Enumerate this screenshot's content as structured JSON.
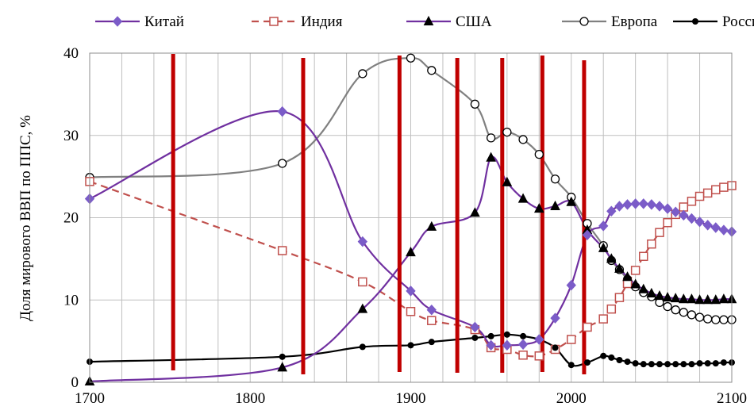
{
  "chart_data": {
    "type": "line",
    "title": "",
    "xlabel": "",
    "ylabel": "Доля мирового ВВП по ППС, %",
    "xlim": [
      1700,
      2100
    ],
    "ylim": [
      0,
      40
    ],
    "x_ticks": [
      "1700",
      "1800",
      "1900",
      "2000",
      "2100"
    ],
    "y_ticks": [
      "0",
      "10",
      "20",
      "30",
      "40"
    ],
    "grid": "vertical and horizontal",
    "legend_position": "top",
    "series": [
      {
        "name": "Китай",
        "color": "#7030a0",
        "dashed": false,
        "marker": "diamond-filled",
        "points": [
          [
            1700,
            22.3
          ],
          [
            1820,
            32.9
          ],
          [
            1870,
            17.1
          ],
          [
            1900,
            11.1
          ],
          [
            1913,
            8.8
          ],
          [
            1940,
            6.7
          ],
          [
            1950,
            4.5
          ],
          [
            1960,
            4.5
          ],
          [
            1970,
            4.6
          ],
          [
            1980,
            5.2
          ],
          [
            1990,
            7.8
          ],
          [
            2000,
            11.8
          ],
          [
            2010,
            17.9
          ],
          [
            2020,
            19.0
          ],
          [
            2025,
            20.8
          ],
          [
            2030,
            21.4
          ],
          [
            2035,
            21.6
          ],
          [
            2040,
            21.7
          ],
          [
            2045,
            21.7
          ],
          [
            2050,
            21.6
          ],
          [
            2055,
            21.4
          ],
          [
            2060,
            21.1
          ],
          [
            2065,
            20.7
          ],
          [
            2070,
            20.3
          ],
          [
            2075,
            19.9
          ],
          [
            2080,
            19.5
          ],
          [
            2085,
            19.1
          ],
          [
            2090,
            18.8
          ],
          [
            2095,
            18.5
          ],
          [
            2100,
            18.3
          ]
        ]
      },
      {
        "name": "Индия",
        "color": "#c0504d",
        "dashed": true,
        "marker": "square-open",
        "points": [
          [
            1700,
            24.4
          ],
          [
            1820,
            16.0
          ],
          [
            1870,
            12.2
          ],
          [
            1900,
            8.6
          ],
          [
            1913,
            7.5
          ],
          [
            1940,
            6.4
          ],
          [
            1950,
            4.2
          ],
          [
            1960,
            4.0
          ],
          [
            1970,
            3.3
          ],
          [
            1980,
            3.2
          ],
          [
            1990,
            4.0
          ],
          [
            2000,
            5.2
          ],
          [
            2010,
            6.7
          ],
          [
            2020,
            7.7
          ],
          [
            2025,
            8.9
          ],
          [
            2030,
            10.3
          ],
          [
            2035,
            12.0
          ],
          [
            2040,
            13.6
          ],
          [
            2045,
            15.3
          ],
          [
            2050,
            16.8
          ],
          [
            2055,
            18.2
          ],
          [
            2060,
            19.4
          ],
          [
            2065,
            20.4
          ],
          [
            2070,
            21.3
          ],
          [
            2075,
            22.0
          ],
          [
            2080,
            22.6
          ],
          [
            2085,
            23.0
          ],
          [
            2090,
            23.4
          ],
          [
            2095,
            23.7
          ],
          [
            2100,
            23.9
          ]
        ]
      },
      {
        "name": "США",
        "color": "#7030a0",
        "dashed": false,
        "marker": "triangle-filled",
        "points": [
          [
            1700,
            0.1
          ],
          [
            1820,
            1.8
          ],
          [
            1870,
            8.9
          ],
          [
            1900,
            15.8
          ],
          [
            1913,
            18.9
          ],
          [
            1940,
            20.6
          ],
          [
            1950,
            27.3
          ],
          [
            1960,
            24.3
          ],
          [
            1970,
            22.3
          ],
          [
            1980,
            21.1
          ],
          [
            1990,
            21.4
          ],
          [
            2000,
            21.9
          ],
          [
            2010,
            18.5
          ],
          [
            2020,
            16.3
          ],
          [
            2025,
            15.0
          ],
          [
            2030,
            13.8
          ],
          [
            2035,
            12.8
          ],
          [
            2040,
            11.9
          ],
          [
            2045,
            11.3
          ],
          [
            2050,
            10.8
          ],
          [
            2055,
            10.5
          ],
          [
            2060,
            10.3
          ],
          [
            2065,
            10.2
          ],
          [
            2070,
            10.1
          ],
          [
            2075,
            10.1
          ],
          [
            2080,
            10.0
          ],
          [
            2085,
            10.0
          ],
          [
            2090,
            10.0
          ],
          [
            2095,
            10.1
          ],
          [
            2100,
            10.1
          ]
        ]
      },
      {
        "name": "Европа",
        "color": "#808080",
        "dashed": false,
        "marker": "circle-open",
        "points": [
          [
            1700,
            24.9
          ],
          [
            1820,
            26.6
          ],
          [
            1870,
            37.5
          ],
          [
            1900,
            39.4
          ],
          [
            1913,
            37.9
          ],
          [
            1940,
            33.8
          ],
          [
            1950,
            29.7
          ],
          [
            1960,
            30.4
          ],
          [
            1970,
            29.5
          ],
          [
            1980,
            27.7
          ],
          [
            1990,
            24.7
          ],
          [
            2000,
            22.5
          ],
          [
            2010,
            19.3
          ],
          [
            2020,
            16.6
          ],
          [
            2025,
            14.8
          ],
          [
            2030,
            13.7
          ],
          [
            2035,
            12.5
          ],
          [
            2040,
            11.6
          ],
          [
            2045,
            10.9
          ],
          [
            2050,
            10.4
          ],
          [
            2055,
            9.7
          ],
          [
            2060,
            9.2
          ],
          [
            2065,
            8.8
          ],
          [
            2070,
            8.5
          ],
          [
            2075,
            8.2
          ],
          [
            2080,
            7.9
          ],
          [
            2085,
            7.7
          ],
          [
            2090,
            7.6
          ],
          [
            2095,
            7.6
          ],
          [
            2100,
            7.6
          ]
        ]
      },
      {
        "name": "Россия",
        "color": "#000000",
        "dashed": false,
        "marker": "circle-filled",
        "points": [
          [
            1700,
            2.5
          ],
          [
            1820,
            3.1
          ],
          [
            1870,
            4.3
          ],
          [
            1900,
            4.5
          ],
          [
            1913,
            4.9
          ],
          [
            1940,
            5.4
          ],
          [
            1950,
            5.6
          ],
          [
            1960,
            5.8
          ],
          [
            1970,
            5.6
          ],
          [
            1980,
            5.2
          ],
          [
            1990,
            4.2
          ],
          [
            2000,
            2.1
          ],
          [
            2010,
            2.4
          ],
          [
            2020,
            3.2
          ],
          [
            2025,
            3.0
          ],
          [
            2030,
            2.7
          ],
          [
            2035,
            2.5
          ],
          [
            2040,
            2.3
          ],
          [
            2045,
            2.2
          ],
          [
            2050,
            2.2
          ],
          [
            2055,
            2.2
          ],
          [
            2060,
            2.2
          ],
          [
            2065,
            2.2
          ],
          [
            2070,
            2.2
          ],
          [
            2075,
            2.2
          ],
          [
            2080,
            2.3
          ],
          [
            2085,
            2.3
          ],
          [
            2090,
            2.3
          ],
          [
            2095,
            2.4
          ],
          [
            2100,
            2.4
          ]
        ]
      }
    ],
    "vertical_markers": {
      "color": "#c00000",
      "x": [
        1752,
        1833,
        1893,
        1929,
        1957,
        1982,
        2008
      ]
    }
  }
}
